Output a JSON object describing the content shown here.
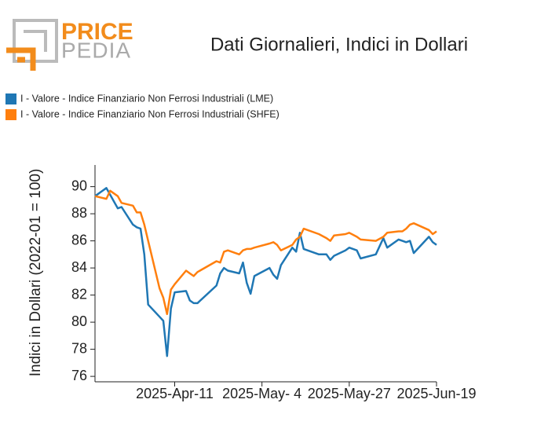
{
  "logo": {
    "top": "PRICE",
    "bottom": "PEDIA"
  },
  "chart_data": {
    "type": "line",
    "title": "Dati Giornalieri, Indici in Dollari",
    "y_label": "Indici in Dollari (2022-01 = 100)",
    "x": [
      "2025-03-21",
      "2025-03-24",
      "2025-03-25",
      "2025-03-27",
      "2025-03-28",
      "2025-03-31",
      "2025-04-01",
      "2025-04-02",
      "2025-04-03",
      "2025-04-04",
      "2025-04-07",
      "2025-04-08",
      "2025-04-09",
      "2025-04-10",
      "2025-04-11",
      "2025-04-14",
      "2025-04-15",
      "2025-04-16",
      "2025-04-17",
      "2025-04-22",
      "2025-04-23",
      "2025-04-24",
      "2025-04-25",
      "2025-04-28",
      "2025-04-29",
      "2025-04-30",
      "2025-05-01",
      "2025-05-02",
      "2025-05-06",
      "2025-05-07",
      "2025-05-08",
      "2025-05-09",
      "2025-05-12",
      "2025-05-13",
      "2025-05-14",
      "2025-05-15",
      "2025-05-19",
      "2025-05-21",
      "2025-05-22",
      "2025-05-23",
      "2025-05-26",
      "2025-05-27",
      "2025-05-29",
      "2025-05-30",
      "2025-06-03",
      "2025-06-05",
      "2025-06-06",
      "2025-06-09",
      "2025-06-10",
      "2025-06-11",
      "2025-06-12",
      "2025-06-13",
      "2025-06-17",
      "2025-06-18",
      "2025-06-19"
    ],
    "series": [
      {
        "name": "I - Valore - Indice Finanziario Non Ferrosi Industriali (LME)",
        "color": "#1f77b4",
        "values": [
          89.3,
          89.9,
          89.4,
          88.4,
          88.5,
          87.2,
          87.0,
          86.9,
          85.0,
          81.3,
          80.4,
          80.1,
          77.5,
          81.0,
          82.2,
          82.3,
          81.6,
          81.4,
          81.4,
          82.7,
          83.6,
          84.0,
          83.8,
          83.6,
          84.4,
          82.9,
          82.1,
          83.4,
          84.0,
          83.5,
          83.2,
          84.2,
          85.5,
          85.2,
          86.6,
          85.4,
          85.0,
          85.0,
          84.6,
          84.9,
          85.3,
          85.5,
          85.3,
          84.7,
          85.0,
          86.2,
          85.5,
          86.1,
          86.0,
          85.9,
          86.0,
          85.1,
          86.3,
          85.9,
          85.7
        ]
      },
      {
        "name": "I - Valore - Indice Finanziario Non Ferrosi Industriali (SHFE)",
        "color": "#ff7f0e",
        "values": [
          89.3,
          89.1,
          89.7,
          89.3,
          88.8,
          88.6,
          88.1,
          88.1,
          87.2,
          86.0,
          82.5,
          81.8,
          80.6,
          82.4,
          82.8,
          83.8,
          83.6,
          83.4,
          83.7,
          84.5,
          84.4,
          85.2,
          85.3,
          85.0,
          85.3,
          85.4,
          85.4,
          85.5,
          85.8,
          85.9,
          85.7,
          85.3,
          85.7,
          86.1,
          86.3,
          86.9,
          86.5,
          86.2,
          86.0,
          86.4,
          86.5,
          86.6,
          86.3,
          86.1,
          86.0,
          86.3,
          86.6,
          86.7,
          86.7,
          86.9,
          87.2,
          87.3,
          86.8,
          86.5,
          86.7
        ]
      }
    ],
    "xlim": [
      "2025-03-21",
      "2025-06-19"
    ],
    "xticks": [
      {
        "value": "2025-04-11",
        "label": "2025-Apr-11"
      },
      {
        "value": "2025-05-04",
        "label": "2025-May- 4"
      },
      {
        "value": "2025-05-27",
        "label": "2025-May-27"
      },
      {
        "value": "2025-06-19",
        "label": "2025-Jun-19"
      }
    ],
    "ylim": [
      75.6,
      91.6
    ],
    "yticks": [
      76,
      78,
      80,
      82,
      84,
      86,
      88,
      90
    ],
    "grid": false
  }
}
